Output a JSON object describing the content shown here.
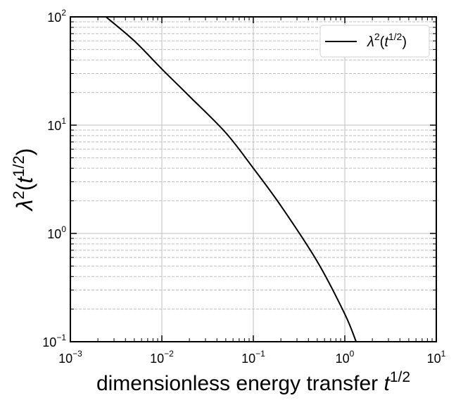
{
  "chart_data": {
    "type": "line",
    "xscale": "log",
    "yscale": "log",
    "xlim": [
      0.001,
      10
    ],
    "ylim": [
      0.1,
      100
    ],
    "xlabel": {
      "base": "dimensionless energy transfer ",
      "var": "t",
      "sup": "1/2"
    },
    "ylabel": {
      "base": "λ",
      "sup1": "2",
      "open": "(",
      "var": "t",
      "sup2": "1/2",
      "close": ")"
    },
    "x_ticks": [
      {
        "base": "10",
        "exp": "−3",
        "value": 0.001
      },
      {
        "base": "10",
        "exp": "−2",
        "value": 0.01
      },
      {
        "base": "10",
        "exp": "−1",
        "value": 0.1
      },
      {
        "base": "10",
        "exp": "0",
        "value": 1
      },
      {
        "base": "10",
        "exp": "1",
        "value": 10
      }
    ],
    "y_ticks": [
      {
        "base": "10",
        "exp": "−1",
        "value": 0.1
      },
      {
        "base": "10",
        "exp": "0",
        "value": 1
      },
      {
        "base": "10",
        "exp": "1",
        "value": 10
      },
      {
        "base": "10",
        "exp": "2",
        "value": 100
      }
    ],
    "grid": {
      "major": true,
      "minor_y": true
    },
    "legend": {
      "placement": "top-right"
    },
    "series": [
      {
        "name": {
          "base": "λ",
          "sup1": "2",
          "open": "(",
          "var": "t",
          "sup2": "1/2",
          "close": ")"
        },
        "color": "#000000",
        "points": [
          {
            "x": 0.00245,
            "y": 100
          },
          {
            "x": 0.005,
            "y": 60
          },
          {
            "x": 0.01,
            "y": 33
          },
          {
            "x": 0.02,
            "y": 18.5
          },
          {
            "x": 0.05,
            "y": 8.5
          },
          {
            "x": 0.1,
            "y": 4.0
          },
          {
            "x": 0.2,
            "y": 1.8
          },
          {
            "x": 0.5,
            "y": 0.55
          },
          {
            "x": 1.0,
            "y": 0.18
          },
          {
            "x": 1.33,
            "y": 0.1
          }
        ]
      }
    ]
  }
}
